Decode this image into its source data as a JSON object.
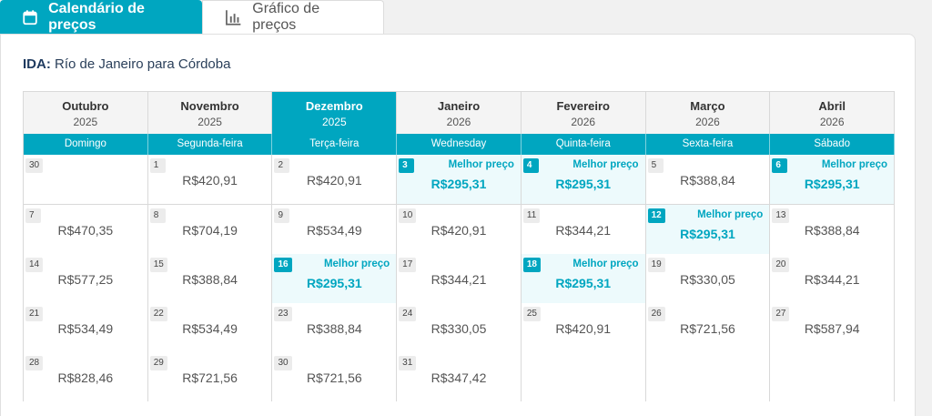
{
  "tabs": [
    {
      "label": "Calendário de preços",
      "icon": "calendar-icon",
      "active": true
    },
    {
      "label": "Gráfico de preços",
      "icon": "bar-chart-icon",
      "active": false
    }
  ],
  "route": {
    "prefix": "IDA:",
    "text": "Río de Janeiro para Córdoba"
  },
  "months": [
    {
      "name": "Outubro",
      "year": "2025"
    },
    {
      "name": "Novembro",
      "year": "2025"
    },
    {
      "name": "Dezembro",
      "year": "2025",
      "active": true
    },
    {
      "name": "Janeiro",
      "year": "2026"
    },
    {
      "name": "Fevereiro",
      "year": "2026"
    },
    {
      "name": "Março",
      "year": "2026"
    },
    {
      "name": "Abril",
      "year": "2026"
    }
  ],
  "weekdays": [
    "Domingo",
    "Segunda-feira",
    "Terça-feira",
    "Wednesday",
    "Quinta-feira",
    "Sexta-feira",
    "Sábado"
  ],
  "best_label": "Melhor preço",
  "weeks": [
    [
      {
        "day": "30",
        "price": ""
      },
      {
        "day": "1",
        "price": "R$420,91"
      },
      {
        "day": "2",
        "price": "R$420,91"
      },
      {
        "day": "3",
        "price": "R$295,31",
        "best": true
      },
      {
        "day": "4",
        "price": "R$295,31",
        "best": true
      },
      {
        "day": "5",
        "price": "R$388,84"
      },
      {
        "day": "6",
        "price": "R$295,31",
        "best": true
      }
    ],
    [
      {
        "day": "7",
        "price": "R$470,35"
      },
      {
        "day": "8",
        "price": "R$704,19"
      },
      {
        "day": "9",
        "price": "R$534,49"
      },
      {
        "day": "10",
        "price": "R$420,91"
      },
      {
        "day": "11",
        "price": "R$344,21"
      },
      {
        "day": "12",
        "price": "R$295,31",
        "best": true
      },
      {
        "day": "13",
        "price": "R$388,84"
      }
    ],
    [
      {
        "day": "14",
        "price": "R$577,25"
      },
      {
        "day": "15",
        "price": "R$388,84"
      },
      {
        "day": "16",
        "price": "R$295,31",
        "best": true
      },
      {
        "day": "17",
        "price": "R$344,21"
      },
      {
        "day": "18",
        "price": "R$295,31",
        "best": true
      },
      {
        "day": "19",
        "price": "R$330,05"
      },
      {
        "day": "20",
        "price": "R$344,21"
      }
    ],
    [
      {
        "day": "21",
        "price": "R$534,49"
      },
      {
        "day": "22",
        "price": "R$534,49"
      },
      {
        "day": "23",
        "price": "R$388,84"
      },
      {
        "day": "24",
        "price": "R$330,05"
      },
      {
        "day": "25",
        "price": "R$420,91"
      },
      {
        "day": "26",
        "price": "R$721,56"
      },
      {
        "day": "27",
        "price": "R$587,94"
      }
    ],
    [
      {
        "day": "28",
        "price": "R$828,46"
      },
      {
        "day": "29",
        "price": "R$721,56"
      },
      {
        "day": "30",
        "price": "R$721,56"
      },
      {
        "day": "31",
        "price": "R$347,42"
      },
      {
        "day": "",
        "price": ""
      },
      {
        "day": "",
        "price": ""
      },
      {
        "day": "",
        "price": ""
      }
    ]
  ],
  "colors": {
    "accent": "#00a6c0",
    "best_bg": "#edfafc",
    "border": "#d9d9d9",
    "route_prefix": "#1e3a5f"
  }
}
